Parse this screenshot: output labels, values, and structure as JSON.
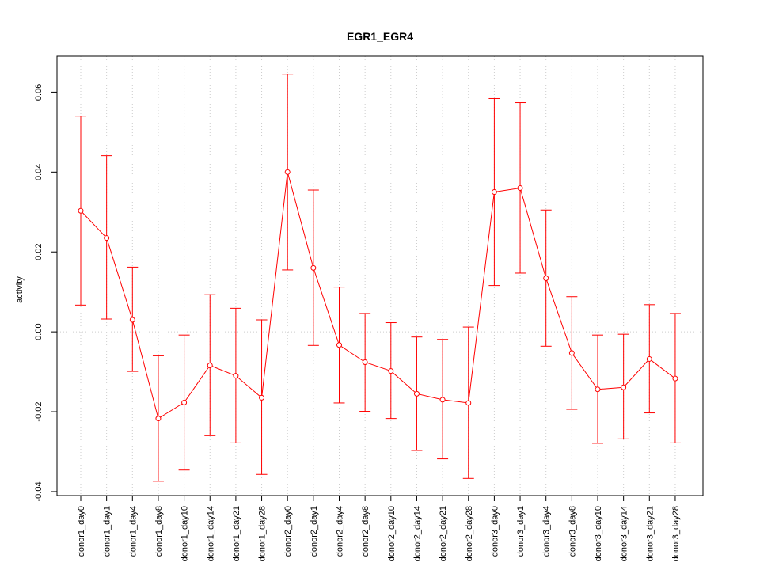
{
  "chart_data": {
    "type": "line",
    "title": "EGR1_EGR4",
    "xlabel": "",
    "ylabel": "activity",
    "ylim": [
      -0.041,
      0.069
    ],
    "yticks": [
      -0.04,
      -0.02,
      0.0,
      0.02,
      0.04,
      0.06
    ],
    "ytick_labels": [
      "-0.04",
      "-0.02",
      "0.00",
      "0.02",
      "0.04",
      "0.06"
    ],
    "grid": true,
    "color": "#ff0000",
    "categories": [
      "donor1_day0",
      "donor1_day1",
      "donor1_day4",
      "donor1_day8",
      "donor1_day10",
      "donor1_day14",
      "donor1_day21",
      "donor1_day28",
      "donor2_day0",
      "donor2_day1",
      "donor2_day4",
      "donor2_day8",
      "donor2_day10",
      "donor2_day14",
      "donor2_day21",
      "donor2_day28",
      "donor3_day0",
      "donor3_day1",
      "donor3_day4",
      "donor3_day8",
      "donor3_day10",
      "donor3_day14",
      "donor3_day21",
      "donor3_day28"
    ],
    "values": [
      0.0303,
      0.0235,
      0.003,
      -0.0217,
      -0.0177,
      -0.0084,
      -0.011,
      -0.0165,
      0.04,
      0.016,
      -0.0033,
      -0.0076,
      -0.0098,
      -0.0155,
      -0.017,
      -0.0178,
      0.035,
      0.036,
      0.0134,
      -0.0053,
      -0.0144,
      -0.0139,
      -0.0068,
      -0.0117
    ],
    "lower": [
      0.0067,
      0.0032,
      -0.0099,
      -0.0374,
      -0.0346,
      -0.026,
      -0.0278,
      -0.0357,
      0.0155,
      -0.0034,
      -0.0178,
      -0.0199,
      -0.0217,
      -0.0297,
      -0.0318,
      -0.0367,
      0.0116,
      0.0147,
      -0.0036,
      -0.0194,
      -0.0279,
      -0.0268,
      -0.0203,
      -0.0278
    ],
    "upper": [
      0.054,
      0.0441,
      0.0162,
      -0.006,
      -0.0008,
      0.0093,
      0.0059,
      0.003,
      0.0645,
      0.0355,
      0.0112,
      0.0046,
      0.0023,
      -0.0013,
      -0.0019,
      0.0012,
      0.0584,
      0.0574,
      0.0305,
      0.0088,
      -0.0008,
      -0.0006,
      0.0068,
      0.0046
    ]
  }
}
